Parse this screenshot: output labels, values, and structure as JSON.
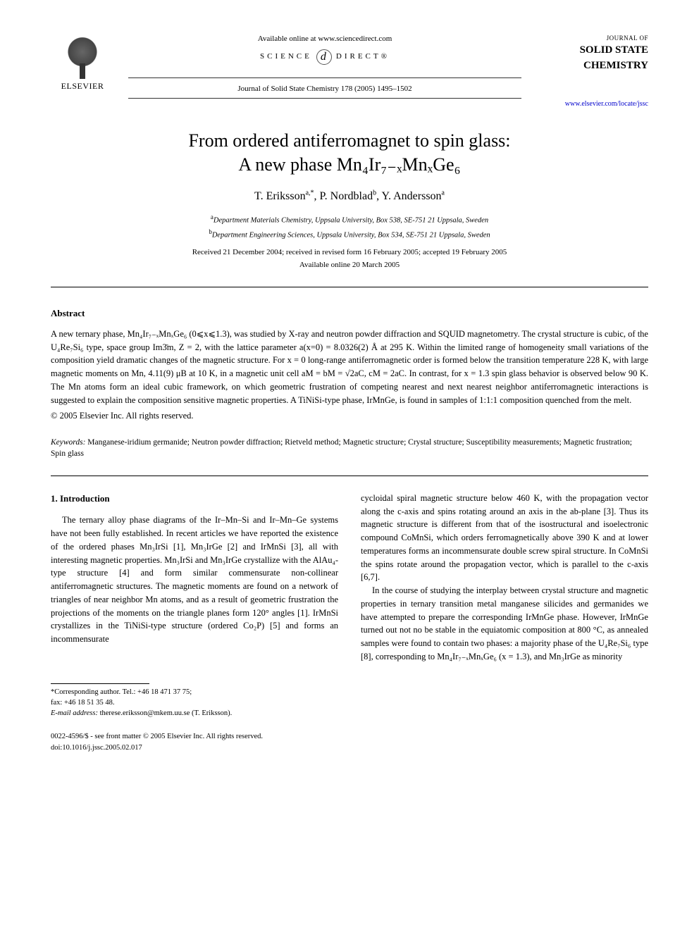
{
  "header": {
    "publisher_name": "ELSEVIER",
    "available_line": "Available online at www.sciencedirect.com",
    "scidirect_left": "SCIENCE",
    "scidirect_right": "DIRECT®",
    "citation": "Journal of Solid State Chemistry 178 (2005) 1495–1502",
    "journal_of": "JOURNAL OF",
    "journal_main_a": "SOLID STATE",
    "journal_main_b": "CHEMISTRY",
    "locate_url": "www.elsevier.com/locate/jssc"
  },
  "title": {
    "line1": "From ordered antiferromagnet to spin glass:",
    "line2": "A new phase Mn₄Ir₇₋ₓMnₓGe₆"
  },
  "authors": {
    "a1_name": "T. Eriksson",
    "a1_aff": "a,*",
    "a2_name": "P. Nordblad",
    "a2_aff": "b",
    "a3_name": "Y. Andersson",
    "a3_aff": "a"
  },
  "affiliations": {
    "a": "Department Materials Chemistry, Uppsala University, Box 538, SE-751 21 Uppsala, Sweden",
    "b": "Department Engineering Sciences, Uppsala University, Box 534, SE-751 21 Uppsala, Sweden"
  },
  "dates": {
    "received": "Received 21 December 2004; received in revised form 16 February 2005; accepted 19 February 2005",
    "online": "Available online 20 March 2005"
  },
  "abstract": {
    "heading": "Abstract",
    "body": "A new ternary phase, Mn₄Ir₇₋ₓMnₓGe₆ (0⩽x⩽1.3), was studied by X-ray and neutron powder diffraction and SQUID magnetometry. The crystal structure is cubic, of the U₄Re₇Si₆ type, space group Im3̄m, Z = 2, with the lattice parameter a(x=0) = 8.0326(2) Å at 295 K. Within the limited range of homogeneity small variations of the composition yield dramatic changes of the magnetic structure. For x = 0 long-range antiferromagnetic order is formed below the transition temperature 228 K, with large magnetic moments on Mn, 4.11(9) μB at 10 K, in a magnetic unit cell aM = bM = √2aC, cM = 2aC. In contrast, for x = 1.3 spin glass behavior is observed below 90 K. The Mn atoms form an ideal cubic framework, on which geometric frustration of competing nearest and next nearest neighbor antiferromagnetic interactions is suggested to explain the composition sensitive magnetic properties. A TiNiSi-type phase, IrMnGe, is found in samples of 1:1:1 composition quenched from the melt.",
    "copyright": "© 2005 Elsevier Inc. All rights reserved."
  },
  "keywords": {
    "label": "Keywords:",
    "text": "Manganese-iridium germanide; Neutron powder diffraction; Rietveld method; Magnetic structure; Crystal structure; Susceptibility measurements; Magnetic frustration; Spin glass"
  },
  "section1": {
    "heading": "1. Introduction",
    "p1": "The ternary alloy phase diagrams of the Ir–Mn–Si and Ir–Mn–Ge systems have not been fully established. In recent articles we have reported the existence of the ordered phases Mn₃IrSi [1], Mn₃IrGe [2] and IrMnSi [3], all with interesting magnetic properties. Mn₃IrSi and Mn₃IrGe crystallize with the AlAu₄-type structure [4] and form similar commensurate non-collinear antiferromagnetic structures. The magnetic moments are found on a network of triangles of near neighbor Mn atoms, and as a result of geometric frustration the projections of the moments on the triangle planes form 120° angles [1]. IrMnSi crystallizes in the TiNiSi-type structure (ordered Co₂P) [5] and forms an incommensurate",
    "p2": "cycloidal spiral magnetic structure below 460 K, with the propagation vector along the c-axis and spins rotating around an axis in the ab-plane [3]. Thus its magnetic structure is different from that of the isostructural and isoelectronic compound CoMnSi, which orders ferromagnetically above 390 K and at lower temperatures forms an incommensurate double screw spiral structure. In CoMnSi the spins rotate around the propagation vector, which is parallel to the c-axis [6,7].",
    "p3": "In the course of studying the interplay between crystal structure and magnetic properties in ternary transition metal manganese silicides and germanides we have attempted to prepare the corresponding IrMnGe phase. However, IrMnGe turned out not no be stable in the equiatomic composition at 800 °C, as annealed samples were found to contain two phases: a majority phase of the U₄Re₇Si₆ type [8], corresponding to Mn₄Ir₇₋ₓMnₓGe₆ (x = 1.3), and Mn₃IrGe as minority"
  },
  "footnotes": {
    "corr_label": "*Corresponding author. Tel.: ",
    "corr_tel": "+46 18 471 37 75;",
    "fax_label": "fax: ",
    "fax": "+46 18 51 35 48.",
    "email_label": "E-mail address:",
    "email": "therese.eriksson@mkem.uu.se (T. Eriksson)."
  },
  "footer": {
    "issn": "0022-4596/$ - see front matter © 2005 Elsevier Inc. All rights reserved.",
    "doi": "doi:10.1016/j.jssc.2005.02.017"
  },
  "colors": {
    "link": "#0000cc",
    "text": "#000000",
    "bg": "#ffffff"
  }
}
